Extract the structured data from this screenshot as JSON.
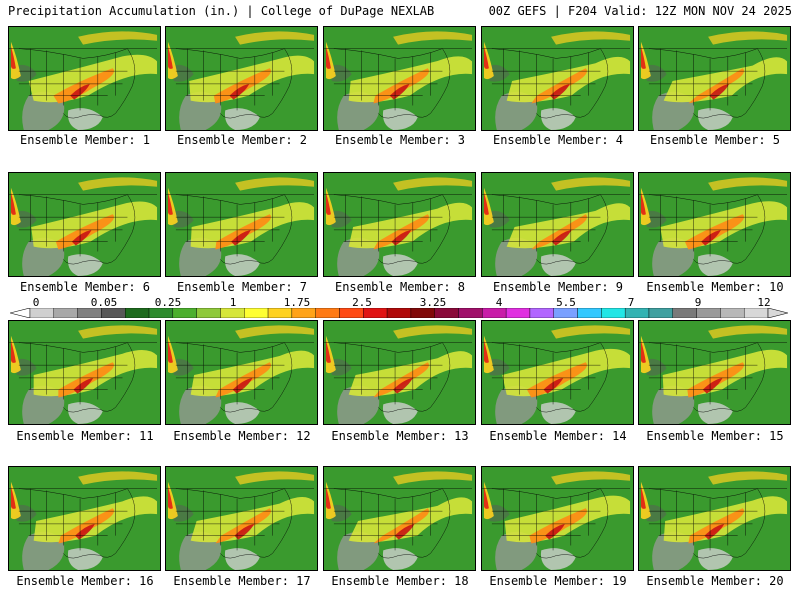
{
  "header": {
    "left": "Precipitation Accumulation (in.) | College of DuPage NEXLAB",
    "right": "00Z GEFS | F204 Valid: 12Z MON NOV 24 2025"
  },
  "colorbar": {
    "labels": [
      "0",
      "0.05",
      "0.25",
      "1",
      "1.75",
      "2.5",
      "3.25",
      "4",
      "5.5",
      "7",
      "9",
      "12"
    ],
    "colors": [
      "#d0d0d0",
      "#a8a8a8",
      "#808080",
      "#585858",
      "#1e6b1e",
      "#2e8b2e",
      "#4caf2e",
      "#8fc93a",
      "#d6e63a",
      "#ffff33",
      "#ffd21f",
      "#ffa319",
      "#ff7a14",
      "#ff4a14",
      "#e01414",
      "#b00a0a",
      "#800a0a",
      "#8a0a3a",
      "#a0106a",
      "#c81ca8",
      "#e030e0",
      "#b266ff",
      "#7aa0ff",
      "#33c8ff",
      "#22e6e6",
      "#33b3b3",
      "#40a0a0",
      "#7a7a7a",
      "#9a9a9a",
      "#b8b8b8",
      "#d8d8d8"
    ]
  },
  "members": [
    {
      "label": "Ensemble Member: 1"
    },
    {
      "label": "Ensemble Member: 2"
    },
    {
      "label": "Ensemble Member: 3"
    },
    {
      "label": "Ensemble Member: 4"
    },
    {
      "label": "Ensemble Member: 5"
    },
    {
      "label": "Ensemble Member: 6"
    },
    {
      "label": "Ensemble Member: 7"
    },
    {
      "label": "Ensemble Member: 8"
    },
    {
      "label": "Ensemble Member: 9"
    },
    {
      "label": "Ensemble Member: 10"
    },
    {
      "label": "Ensemble Member: 11"
    },
    {
      "label": "Ensemble Member: 12"
    },
    {
      "label": "Ensemble Member: 13"
    },
    {
      "label": "Ensemble Member: 14"
    },
    {
      "label": "Ensemble Member: 15"
    },
    {
      "label": "Ensemble Member: 16"
    },
    {
      "label": "Ensemble Member: 17"
    },
    {
      "label": "Ensemble Member: 18"
    },
    {
      "label": "Ensemble Member: 19"
    },
    {
      "label": "Ensemble Member: 20"
    }
  ]
}
